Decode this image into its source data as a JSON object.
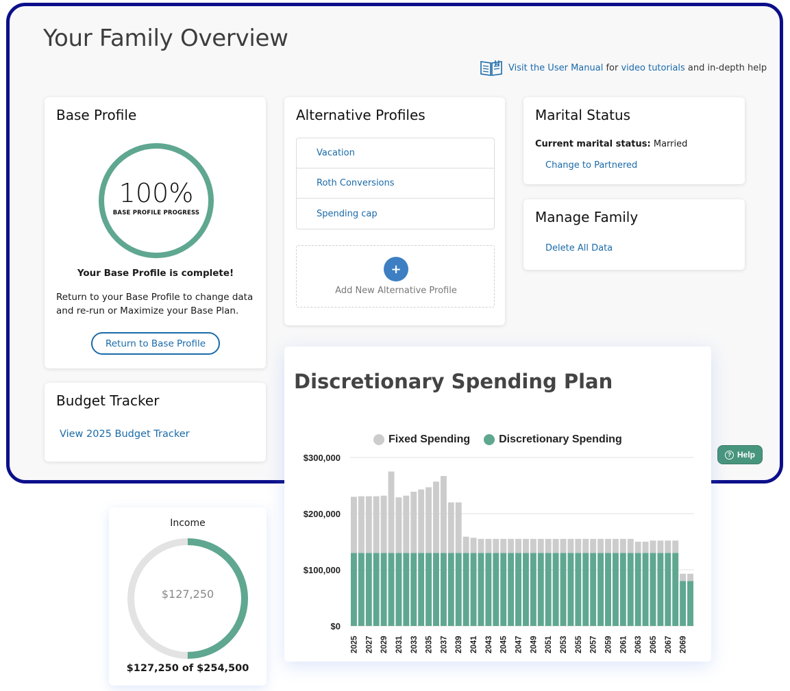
{
  "page": {
    "title": "Your Family Overview"
  },
  "manual": {
    "link1": "Visit the User Manual",
    "mid": " for ",
    "link2": "video tutorials",
    "end": " and in-depth help",
    "icon": "book-icon"
  },
  "base_profile": {
    "title": "Base Profile",
    "progress_pct": "100%",
    "progress_value": 1.0,
    "progress_caption": "BASE PROFILE PROGRESS",
    "complete_msg": "Your Base Profile is complete!",
    "return_text": "Return to your Base Profile to change data and re-run or Maximize your Base Plan.",
    "return_button": "Return to Base Profile"
  },
  "alt_profiles": {
    "title": "Alternative Profiles",
    "items": [
      "Vacation",
      "Roth Conversions",
      "Spending cap"
    ],
    "add_label": "Add New Alternative Profile",
    "add_icon": "+"
  },
  "marital": {
    "title": "Marital Status",
    "label": "Current marital status:",
    "value": " Married",
    "change_link": "Change to Partnered"
  },
  "manage_family": {
    "title": "Manage Family",
    "delete_link": "Delete All Data"
  },
  "budget": {
    "title": "Budget Tracker",
    "link": "View 2025 Budget Tracker"
  },
  "help": {
    "label": "Help",
    "icon": "?"
  },
  "income": {
    "title": "Income",
    "center": "$127,250",
    "footer": "$127,250 of $254,500",
    "fraction": 0.5
  },
  "colors": {
    "accent": "#5fa790",
    "link": "#1a6aa8",
    "frame": "#0c0f8a",
    "fixed": "#cccccc"
  },
  "chart_data": {
    "type": "bar",
    "stacked": true,
    "title": "Discretionary Spending Plan",
    "legend": [
      "Fixed Spending",
      "Discretionary Spending"
    ],
    "ylim": [
      0,
      300000
    ],
    "yticks": [
      "$0",
      "$100,000",
      "$200,000",
      "$300,000"
    ],
    "xtick_labels": [
      "2025",
      "2027",
      "2029",
      "2031",
      "2033",
      "2035",
      "2037",
      "2039",
      "2041",
      "2043",
      "2045",
      "2047",
      "2049",
      "2051",
      "2053",
      "2055",
      "2057",
      "2059",
      "2061",
      "2063",
      "2065",
      "2067",
      "2069"
    ],
    "categories": [
      2025,
      2026,
      2027,
      2028,
      2029,
      2030,
      2031,
      2032,
      2033,
      2034,
      2035,
      2036,
      2037,
      2038,
      2039,
      2040,
      2041,
      2042,
      2043,
      2044,
      2045,
      2046,
      2047,
      2048,
      2049,
      2050,
      2051,
      2052,
      2053,
      2054,
      2055,
      2056,
      2057,
      2058,
      2059,
      2060,
      2061,
      2062,
      2063,
      2064,
      2065,
      2066,
      2067,
      2068,
      2069,
      2070
    ],
    "series": [
      {
        "name": "Discretionary Spending",
        "color": "#5fa790",
        "values": [
          130000,
          130000,
          130000,
          130000,
          130000,
          130000,
          130000,
          130000,
          130000,
          130000,
          130000,
          130000,
          130000,
          130000,
          130000,
          130000,
          130000,
          130000,
          130000,
          130000,
          130000,
          130000,
          130000,
          130000,
          130000,
          130000,
          130000,
          130000,
          130000,
          130000,
          130000,
          130000,
          130000,
          130000,
          130000,
          130000,
          130000,
          130000,
          130000,
          130000,
          130000,
          130000,
          130000,
          130000,
          80000,
          80000
        ]
      },
      {
        "name": "Fixed Spending",
        "color": "#cccccc",
        "values": [
          100000,
          101000,
          101000,
          101000,
          102000,
          145000,
          99000,
          102000,
          109000,
          113000,
          117000,
          127000,
          137000,
          90000,
          90000,
          29000,
          27000,
          25000,
          25000,
          25000,
          25000,
          25000,
          25000,
          25000,
          25000,
          25000,
          25000,
          25000,
          25000,
          25000,
          25000,
          25000,
          25000,
          25000,
          25000,
          25000,
          25000,
          25000,
          20000,
          20000,
          22000,
          22000,
          22000,
          22000,
          13000,
          13000
        ]
      }
    ]
  }
}
